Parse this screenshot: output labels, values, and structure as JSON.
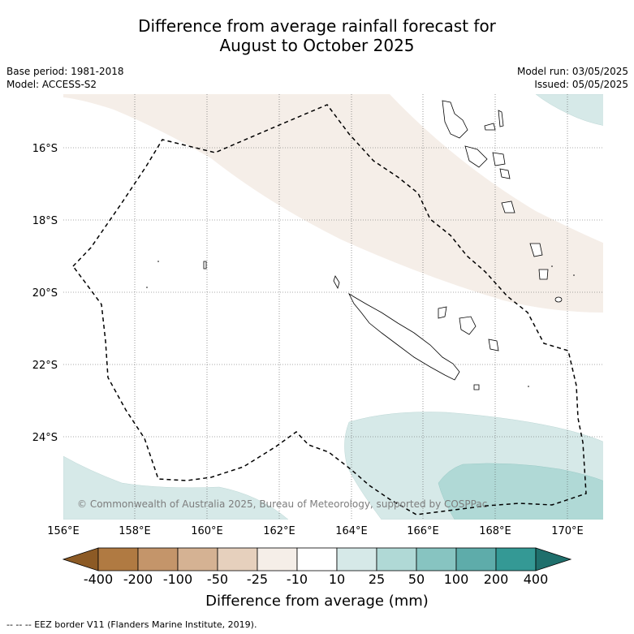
{
  "title_line1": "Difference from average rainfall forecast for",
  "title_line2": "August to October 2025",
  "base_period": "Base period: 1981-2018",
  "model": "Model: ACCESS-S2",
  "model_run": "Model run: 03/05/2025",
  "issued": "Issued: 05/05/2025",
  "copyright": "© Commonwealth of Australia 2025, Bureau of Meteorology, supported by COSPPac",
  "lat_ticks": [
    "16°S",
    "18°S",
    "20°S",
    "22°S",
    "24°S"
  ],
  "lon_ticks": [
    "156°E",
    "158°E",
    "160°E",
    "162°E",
    "164°E",
    "166°E",
    "168°E",
    "170°E"
  ],
  "colorbar": {
    "title": "Difference from average (mm)",
    "labels": [
      "-400",
      "-200",
      "-100",
      "-50",
      "-25",
      "-10",
      "10",
      "25",
      "50",
      "100",
      "200",
      "400"
    ],
    "colors": [
      "#8c5a25",
      "#b07a42",
      "#c4956a",
      "#d5b293",
      "#e6d0bd",
      "#f5eee8",
      "#ffffff",
      "#d6e9e8",
      "#b0d9d6",
      "#87c4c1",
      "#5eacaa",
      "#349995",
      "#1f6f6c"
    ]
  },
  "footer": "--  --  -- EEZ border V11 (Flanders Marine Institute, 2019)."
}
